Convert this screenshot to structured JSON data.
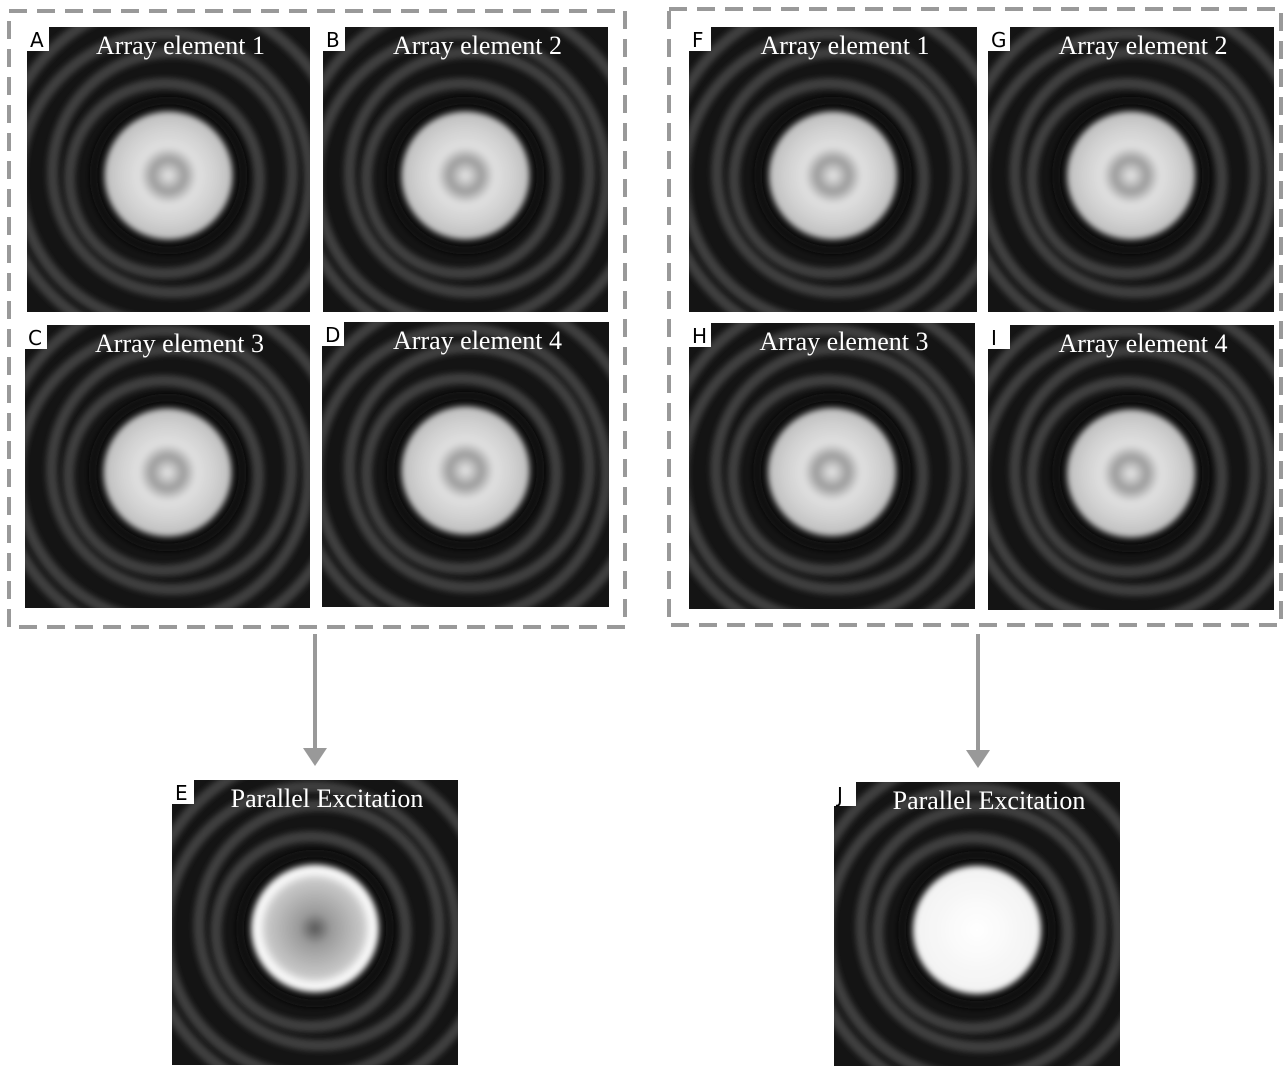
{
  "panels": [
    {
      "letter": "A",
      "label": "Array element 1"
    },
    {
      "letter": "B",
      "label": "Array element 2"
    },
    {
      "letter": "C",
      "label": "Array element 3"
    },
    {
      "letter": "D",
      "label": "Array element 4"
    },
    {
      "letter": "E",
      "label": "Parallel Excitation"
    },
    {
      "letter": "F",
      "label": "Array element 1"
    },
    {
      "letter": "G",
      "label": "Array element 2"
    },
    {
      "letter": "H",
      "label": "Array element 3"
    },
    {
      "letter": "I",
      "label": "Array element 4"
    },
    {
      "letter": "J",
      "label": "Parallel Excitation"
    }
  ]
}
